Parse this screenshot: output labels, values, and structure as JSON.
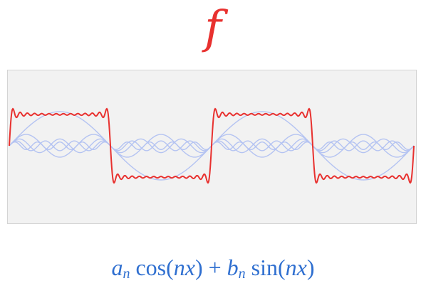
{
  "function_label": "f",
  "formula": {
    "a": "a",
    "n1": "n",
    "cos": " cos(",
    "nx1": "nx",
    "close1": ") + ",
    "b": "b",
    "n2": "n",
    "sin": " sin(",
    "nx2": "nx",
    "close2": ")"
  },
  "colors": {
    "function": "#e8312f",
    "harmonics": "#b4c3f2",
    "formula": "#2f6fd0",
    "panel_background": "#f2f2f2"
  },
  "chart_data": {
    "type": "line",
    "title": "",
    "xlabel": "",
    "ylabel": "",
    "x_range_periods": 2,
    "series": [
      {
        "kind": "fourier_partial_sum",
        "terms": [
          1,
          3,
          5,
          7,
          9,
          11,
          13,
          15,
          17,
          19,
          21,
          23,
          25,
          27
        ],
        "color": "#e8312f"
      },
      {
        "kind": "harmonic",
        "n": 1,
        "amplitude": 1.0
      },
      {
        "kind": "harmonic",
        "n": 3,
        "amplitude": 0.333
      },
      {
        "kind": "harmonic",
        "n": 5,
        "amplitude": 0.2
      },
      {
        "kind": "harmonic",
        "n": 7,
        "amplitude": 0.143
      },
      {
        "kind": "harmonic",
        "n": 9,
        "amplitude": 0.111
      }
    ]
  }
}
